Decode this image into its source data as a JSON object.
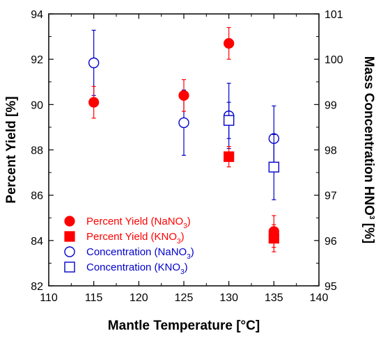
{
  "chart_data": {
    "type": "scatter",
    "xlabel": "Mantle Temperature [°C]",
    "ylabel_left": "Percent Yield [%]",
    "ylabel_right": {
      "main": "Mass Concentration HNO",
      "sub": "3",
      "tail": " [%]"
    },
    "xlim": [
      110,
      140
    ],
    "ylim_left": [
      82,
      94
    ],
    "ylim_right": [
      95,
      101
    ],
    "x_ticks": [
      "110",
      "115",
      "120",
      "125",
      "130",
      "135",
      "140"
    ],
    "y_left_ticks": [
      "82",
      "84",
      "86",
      "88",
      "90",
      "92",
      "94"
    ],
    "y_right_ticks": [
      "95",
      "96",
      "97",
      "98",
      "99",
      "100",
      "101"
    ],
    "legend_position": "lower-left",
    "series": [
      {
        "label": {
          "main": "Percent Yield (NaNO",
          "sub": "3",
          "tail": ")"
        },
        "axis": "left",
        "marker": "circle-filled",
        "color": "#ff0000",
        "points": [
          {
            "x": 115,
            "y": 90.1,
            "err": 0.7
          },
          {
            "x": 125,
            "y": 90.4,
            "err": 0.7
          },
          {
            "x": 130,
            "y": 92.7,
            "err": 0.7
          },
          {
            "x": 135,
            "y": 84.4,
            "err": 0.7
          }
        ]
      },
      {
        "label": {
          "main": "Percent Yield (KNO",
          "sub": "3",
          "tail": ")"
        },
        "axis": "left",
        "marker": "square-filled",
        "color": "#ff0000",
        "points": [
          {
            "x": 130,
            "y": 87.7,
            "err": 0.45
          },
          {
            "x": 135,
            "y": 84.1,
            "err": 0.6
          }
        ]
      },
      {
        "label": {
          "main": "Concentration (NaNO",
          "sub": "3",
          "tail": ")"
        },
        "axis": "right",
        "marker": "circle-open",
        "color": "#0000cc",
        "points": [
          {
            "x": 115,
            "y": 99.92,
            "err": 0.72
          },
          {
            "x": 125,
            "y": 98.6,
            "err": 0.72
          },
          {
            "x": 130,
            "y": 98.75,
            "err": 0.72
          },
          {
            "x": 135,
            "y": 98.25,
            "err": 0.72
          }
        ]
      },
      {
        "label": {
          "main": "Concentration (KNO",
          "sub": "3",
          "tail": ")"
        },
        "axis": "right",
        "marker": "square-open",
        "color": "#0000cc",
        "points": [
          {
            "x": 130,
            "y": 98.65,
            "err": 0.4
          },
          {
            "x": 135,
            "y": 97.62,
            "err": 0.72
          }
        ]
      }
    ]
  }
}
